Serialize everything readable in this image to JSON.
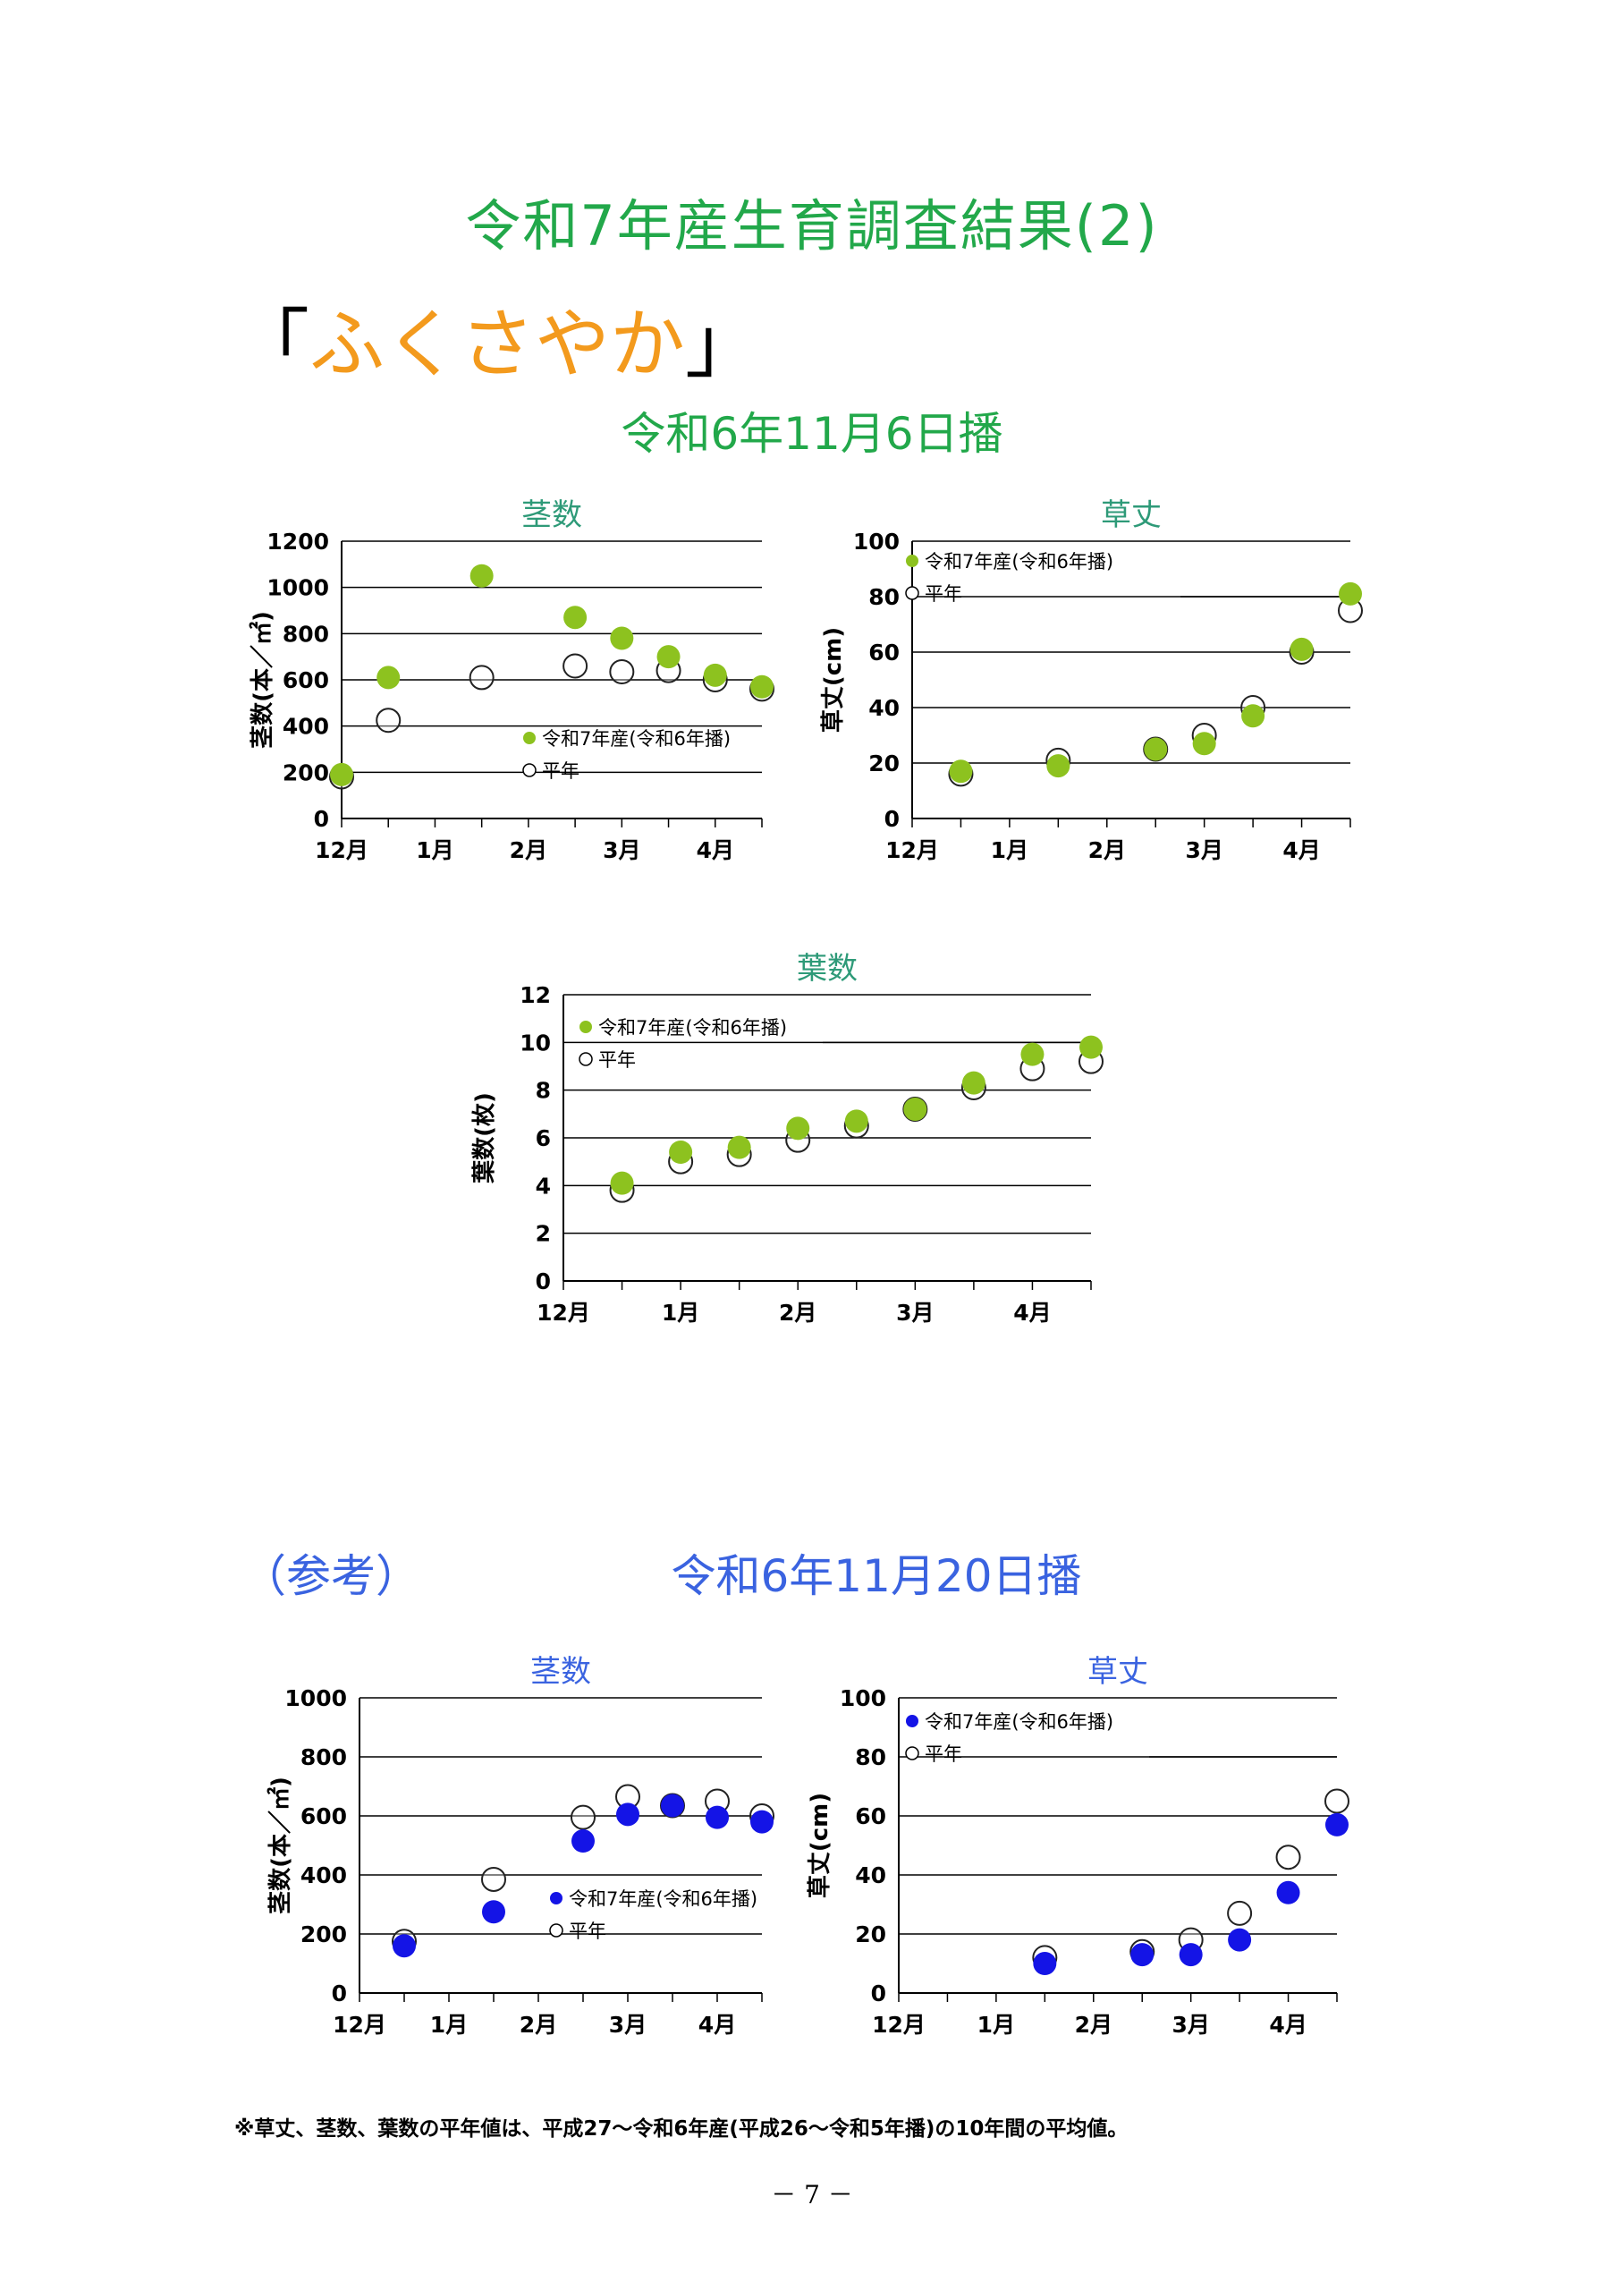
{
  "page": {
    "title": "令和7年産生育調査結果(2)",
    "variety_open": "「",
    "variety_name": "ふくさやか",
    "variety_close": "」",
    "sowing_main": "令和6年11月6日播",
    "reference_label": "（参考）",
    "sowing_reference": "令和6年11月20日播",
    "footnote": "※草丈、茎数、葉数の平年値は、平成27～令和6年産(平成26～令和5年播)の10年間の平均値。",
    "page_number": "－ 7 －"
  },
  "colors": {
    "title_green": "#22a84a",
    "chart_title_teal": "#2e9a78",
    "variety_orange": "#f39a1d",
    "reference_blue": "#3a63e0",
    "point_green": "#8dc21f",
    "point_blue": "#1414e6"
  },
  "chart_data": [
    {
      "id": "stem1",
      "type": "scatter",
      "title": "茎数",
      "ylabel": "茎数(本／㎡)",
      "ylim": [
        0,
        1200
      ],
      "yticks": [
        "0",
        "200",
        "400",
        "600",
        "800",
        "1000",
        "1200"
      ],
      "xticks": [
        "12月",
        "1月",
        "2月",
        "3月",
        "4月"
      ],
      "xlim": [
        0,
        4.5
      ],
      "grid": true,
      "legend": "center-right",
      "series": [
        {
          "name": "令和7年産(令和6年播)",
          "style": "filled",
          "color": "#8dc21f",
          "x": [
            0,
            0.5,
            1.5,
            2.5,
            3.0,
            3.5,
            4.0,
            4.5
          ],
          "y": [
            190,
            610,
            1050,
            870,
            780,
            700,
            620,
            570
          ]
        },
        {
          "name": "平年",
          "style": "open",
          "x": [
            0,
            0.5,
            1.5,
            2.5,
            3.0,
            3.5,
            4.0,
            4.5
          ],
          "y": [
            180,
            425,
            610,
            660,
            635,
            640,
            600,
            560
          ]
        }
      ]
    },
    {
      "id": "height1",
      "type": "scatter",
      "title": "草丈",
      "ylabel": "草丈(cm)",
      "ylim": [
        0,
        100
      ],
      "yticks": [
        "0",
        "20",
        "40",
        "60",
        "80",
        "100"
      ],
      "xticks": [
        "12月",
        "1月",
        "2月",
        "3月",
        "4月"
      ],
      "xlim": [
        0,
        4.5
      ],
      "grid": true,
      "legend": "top-left",
      "series": [
        {
          "name": "令和7年産(令和6年播)",
          "style": "filled",
          "color": "#8dc21f",
          "x": [
            0.5,
            1.5,
            2.5,
            3.0,
            3.5,
            4.0,
            4.5
          ],
          "y": [
            17,
            19,
            25,
            27,
            37,
            61,
            81
          ]
        },
        {
          "name": "平年",
          "style": "open",
          "x": [
            0.5,
            1.5,
            2.5,
            3.0,
            3.5,
            4.0,
            4.5
          ],
          "y": [
            16,
            21,
            25,
            30,
            40,
            60,
            75
          ]
        }
      ]
    },
    {
      "id": "leaf1",
      "type": "scatter",
      "title": "葉数",
      "ylabel": "葉数(枚)",
      "ylim": [
        0,
        12
      ],
      "yticks": [
        "0",
        "2",
        "4",
        "6",
        "8",
        "10",
        "12"
      ],
      "xticks": [
        "12月",
        "1月",
        "2月",
        "3月",
        "4月"
      ],
      "xlim": [
        0,
        4.5
      ],
      "grid": true,
      "legend": "top-left",
      "series": [
        {
          "name": "令和7年産(令和6年播)",
          "style": "filled",
          "color": "#8dc21f",
          "x": [
            0.5,
            1.0,
            1.5,
            2.0,
            2.5,
            3.0,
            3.5,
            4.0,
            4.5
          ],
          "y": [
            4.1,
            5.4,
            5.6,
            6.4,
            6.7,
            7.2,
            8.3,
            9.5,
            9.8
          ]
        },
        {
          "name": "平年",
          "style": "open",
          "x": [
            0.5,
            1.0,
            1.5,
            2.0,
            2.5,
            3.0,
            3.5,
            4.0,
            4.5
          ],
          "y": [
            3.8,
            5.0,
            5.3,
            5.9,
            6.5,
            7.2,
            8.1,
            8.9,
            9.2
          ]
        }
      ]
    },
    {
      "id": "stem2",
      "type": "scatter",
      "title": "茎数",
      "ylabel": "茎数(本／㎡)",
      "ylim": [
        0,
        1000
      ],
      "yticks": [
        "0",
        "200",
        "400",
        "600",
        "800",
        "1000"
      ],
      "xticks": [
        "12月",
        "1月",
        "2月",
        "3月",
        "4月"
      ],
      "xlim": [
        0,
        4.5
      ],
      "grid": true,
      "legend": "center-right",
      "series": [
        {
          "name": "令和7年産(令和6年播)",
          "style": "filled",
          "color": "#1414e6",
          "x": [
            0.5,
            1.5,
            2.5,
            3.0,
            3.5,
            4.0,
            4.5
          ],
          "y": [
            160,
            275,
            515,
            605,
            635,
            595,
            580
          ]
        },
        {
          "name": "平年",
          "style": "open",
          "x": [
            0.5,
            1.5,
            2.5,
            3.0,
            3.5,
            4.0,
            4.5
          ],
          "y": [
            175,
            385,
            595,
            665,
            635,
            650,
            600
          ]
        }
      ]
    },
    {
      "id": "height2",
      "type": "scatter",
      "title": "草丈",
      "ylabel": "草丈(cm)",
      "ylim": [
        0,
        100
      ],
      "yticks": [
        "0",
        "20",
        "40",
        "60",
        "80",
        "100"
      ],
      "xticks": [
        "12月",
        "1月",
        "2月",
        "3月",
        "4月"
      ],
      "xlim": [
        0,
        4.5
      ],
      "grid": true,
      "legend": "top-left",
      "series": [
        {
          "name": "令和7年産(令和6年播)",
          "style": "filled",
          "color": "#1414e6",
          "x": [
            1.5,
            2.5,
            3.0,
            3.5,
            4.0,
            4.5
          ],
          "y": [
            10,
            13,
            13,
            18,
            34,
            57
          ]
        },
        {
          "name": "平年",
          "style": "open",
          "x": [
            1.5,
            2.5,
            3.0,
            3.5,
            4.0,
            4.5
          ],
          "y": [
            12,
            14,
            18,
            27,
            46,
            65
          ]
        }
      ]
    }
  ]
}
